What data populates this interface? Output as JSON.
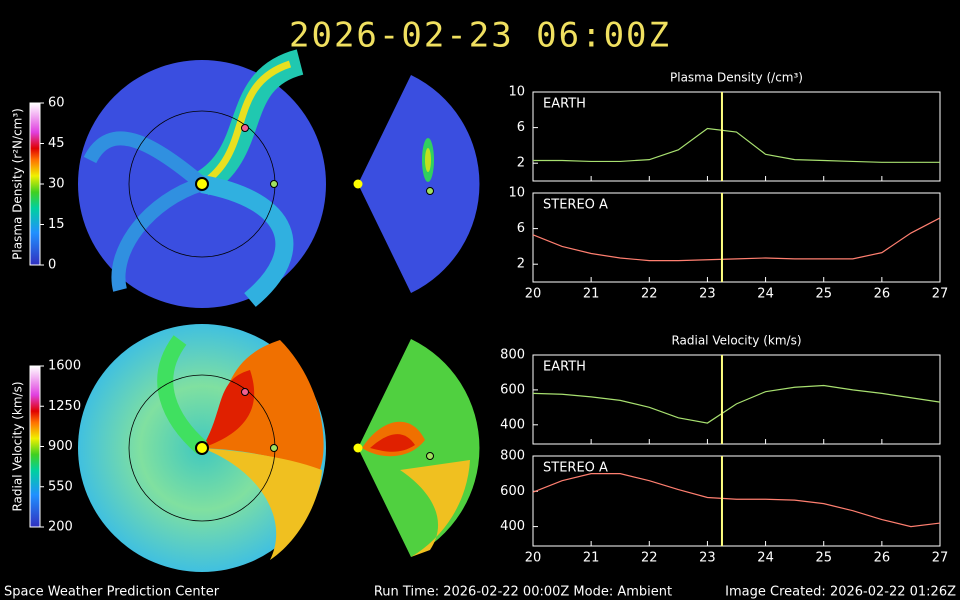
{
  "title": "2026-02-23  06:00Z",
  "colorbars": [
    {
      "label": "Plasma Density (r²N/cm³)",
      "lim": [
        0,
        60
      ],
      "ticks": [
        0,
        15,
        30,
        45,
        60
      ]
    },
    {
      "label": "Radial Velocity (km/s)",
      "lim": [
        200,
        1600
      ],
      "ticks": [
        200,
        550,
        900,
        1250,
        1600
      ]
    }
  ],
  "footer": {
    "left": "Space Weather Prediction Center",
    "center": "Run Time: 2026-02-22 00:00Z  Mode: Ambient",
    "right": "Image Created: 2026-02-22 01:26Z"
  },
  "chart_data": [
    {
      "type": "line",
      "title": "Plasma Density (/cm³)",
      "x": [
        20,
        20.5,
        21,
        21.5,
        22,
        22.5,
        23,
        23.5,
        24,
        24.5,
        25,
        25.5,
        26,
        26.5,
        27
      ],
      "series": [
        {
          "name": "EARTH",
          "color": "#a8e070",
          "values": [
            2.3,
            2.3,
            2.2,
            2.2,
            2.4,
            3.5,
            5.9,
            5.5,
            3.0,
            2.4,
            2.3,
            2.2,
            2.1,
            2.1,
            2.1
          ]
        }
      ],
      "marker": 23.25,
      "xlim": [
        20,
        27
      ],
      "xticks": [
        20,
        21,
        22,
        23,
        24,
        25,
        26,
        27
      ],
      "ylim": [
        0,
        10
      ],
      "yticks": [
        2,
        6,
        10
      ]
    },
    {
      "type": "line",
      "x": [
        20,
        20.5,
        21,
        21.5,
        22,
        22.5,
        23,
        23.5,
        24,
        24.5,
        25,
        25.5,
        26,
        26.5,
        27
      ],
      "series": [
        {
          "name": "STEREO A",
          "color": "#ff7f70",
          "values": [
            5.3,
            4.0,
            3.2,
            2.7,
            2.4,
            2.4,
            2.5,
            2.6,
            2.7,
            2.6,
            2.6,
            2.6,
            3.3,
            5.5,
            7.2
          ]
        }
      ],
      "marker": 23.25,
      "xlim": [
        20,
        27
      ],
      "xticks": [
        20,
        21,
        22,
        23,
        24,
        25,
        26,
        27
      ],
      "ylim": [
        0,
        10
      ],
      "yticks": [
        2,
        6,
        10
      ]
    },
    {
      "type": "line",
      "title": "Radial Velocity (km/s)",
      "x": [
        20,
        20.5,
        21,
        21.5,
        22,
        22.5,
        23,
        23.5,
        24,
        24.5,
        25,
        25.5,
        26,
        26.5,
        27
      ],
      "series": [
        {
          "name": "EARTH",
          "color": "#a8e070",
          "values": [
            580,
            575,
            560,
            540,
            500,
            440,
            410,
            520,
            590,
            615,
            625,
            600,
            580,
            555,
            530
          ]
        }
      ],
      "marker": 23.25,
      "xlim": [
        20,
        27
      ],
      "xticks": [
        20,
        21,
        22,
        23,
        24,
        25,
        26,
        27
      ],
      "ylim": [
        290,
        800
      ],
      "yticks": [
        400,
        600,
        800
      ]
    },
    {
      "type": "line",
      "x": [
        20,
        20.5,
        21,
        21.5,
        22,
        22.5,
        23,
        23.5,
        24,
        24.5,
        25,
        25.5,
        26,
        26.5,
        27
      ],
      "series": [
        {
          "name": "STEREO A",
          "color": "#ff7f70",
          "values": [
            595,
            660,
            700,
            700,
            660,
            610,
            565,
            555,
            555,
            550,
            530,
            490,
            440,
            400,
            420
          ]
        }
      ],
      "marker": 23.25,
      "xlim": [
        20,
        27
      ],
      "xticks": [
        20,
        21,
        22,
        23,
        24,
        25,
        26,
        27
      ],
      "ylim": [
        290,
        800
      ],
      "yticks": [
        400,
        600,
        800
      ]
    }
  ]
}
